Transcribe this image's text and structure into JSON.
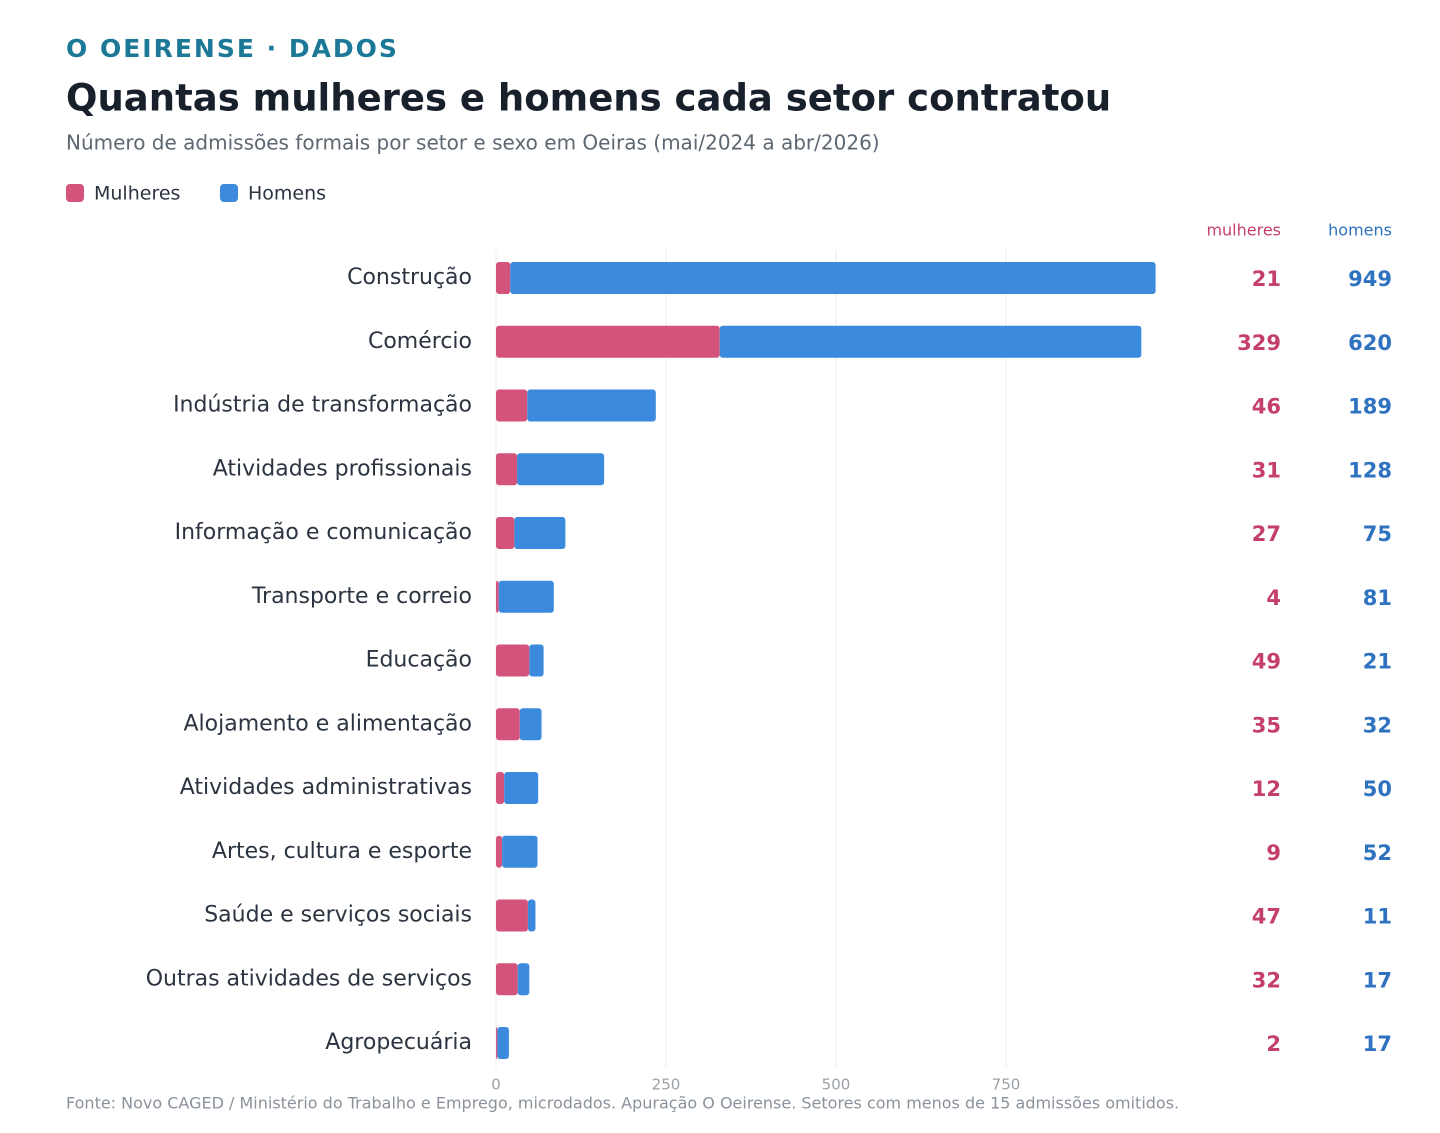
{
  "chart_data": {
    "type": "stacked-bar-horizontal",
    "kicker": "O OEIRENSE · DADOS",
    "title": "Quantas mulheres e homens cada setor contratou",
    "subtitle": "Número de admissões formais por setor e sexo em Oeiras (mai/2024 a abr/2026)",
    "source": "Fonte: Novo CAGED / Ministério do Trabalho e Emprego, microdados. Apuração O Oeirense. Setores com menos de 15 admissões omitidos.",
    "categories": [
      "Construção",
      "Comércio",
      "Indústria de transformação",
      "Atividades profissionais",
      "Informação e comunicação",
      "Transporte e correio",
      "Educação",
      "Alojamento e alimentação",
      "Atividades administrativas",
      "Artes, cultura e esporte",
      "Saúde e serviços sociais",
      "Outras atividades de serviços",
      "Agropecuária"
    ],
    "series": [
      {
        "name": "Mulheres",
        "column_header": "mulheres",
        "color": "#d4537a",
        "label_color": "#c43f6b",
        "values": [
          21,
          329,
          46,
          31,
          27,
          4,
          49,
          35,
          12,
          9,
          47,
          32,
          2
        ]
      },
      {
        "name": "Homens",
        "column_header": "homens",
        "color": "#3b8ade",
        "label_color": "#2f72bf",
        "values": [
          949,
          620,
          189,
          128,
          75,
          81,
          21,
          32,
          50,
          52,
          11,
          17,
          17
        ]
      }
    ],
    "xlim": [
      0,
      1000
    ],
    "xticks": [
      0,
      250,
      500,
      750
    ],
    "grid": true
  }
}
